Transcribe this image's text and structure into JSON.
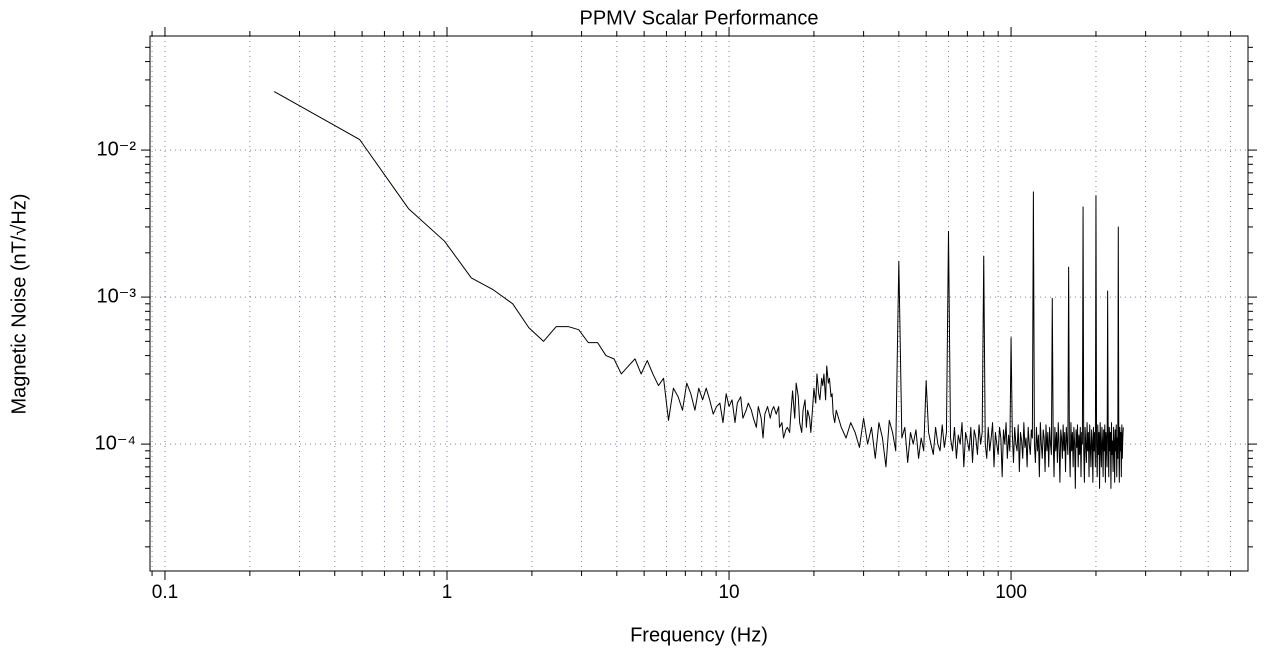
{
  "chart_data": {
    "type": "line",
    "title": "PPMV Scalar Performance",
    "x_label": "Frequency (Hz)",
    "y_label": "Magnetic Noise (nT/√Hz)",
    "log_x": true,
    "log_y": true,
    "grid": true,
    "color": "#000000",
    "xlim": [
      0.0885,
      692
    ],
    "ylim": [
      1.37e-05,
      0.0597
    ],
    "xticks": [
      0.1,
      1,
      10,
      100
    ],
    "xminor": [
      0.09,
      0.2,
      0.3,
      0.4,
      0.5,
      0.6,
      0.7,
      0.8,
      0.9,
      2,
      3,
      4,
      5,
      6,
      7,
      8,
      9,
      20,
      30,
      40,
      50,
      60,
      70,
      80,
      90,
      200,
      300,
      400,
      500,
      600
    ],
    "yticks": [
      {
        "value": 0.01,
        "label": "10⁻²"
      },
      {
        "value": 0.001,
        "label": "10⁻³"
      },
      {
        "value": 0.0001,
        "label": "10⁻⁴"
      }
    ],
    "yminor": [
      2e-05,
      3e-05,
      4e-05,
      5e-05,
      6e-05,
      7e-05,
      8e-05,
      9e-05,
      0.0002,
      0.0003,
      0.0004,
      0.0005,
      0.0006,
      0.0007,
      0.0008,
      0.0009,
      0.002,
      0.003,
      0.004,
      0.005,
      0.006,
      0.007,
      0.008,
      0.009,
      0.02,
      0.03,
      0.04,
      0.05
    ],
    "x": [
      0.244,
      0.49,
      0.73,
      0.98,
      1.22,
      1.46,
      1.71,
      1.95,
      2.2,
      2.44,
      2.69,
      2.93,
      3.17,
      3.42,
      3.66,
      3.91,
      4.15,
      4.4,
      4.64,
      4.88,
      5.13,
      5.37,
      5.62,
      5.86,
      6.1,
      6.35,
      6.6,
      6.84,
      7.08,
      7.32,
      7.57,
      7.81,
      8.06,
      8.3,
      8.54,
      8.79,
      9.03,
      9.28,
      9.52,
      9.77,
      10.0,
      10.25,
      10.5,
      10.7,
      11.0,
      11.2,
      11.5,
      11.7,
      12.0,
      12.2,
      12.5,
      12.7,
      13.0,
      13.2,
      13.4,
      13.7,
      14.0,
      14.2,
      14.4,
      14.7,
      15.0,
      15.1,
      15.4,
      15.6,
      15.9,
      16.1,
      16.4,
      16.6,
      16.8,
      17.1,
      17.3,
      17.6,
      17.8,
      18.1,
      18.3,
      18.6,
      18.8,
      19.0,
      19.3,
      19.5,
      19.8,
      20.0,
      20.3,
      20.5,
      20.8,
      21.0,
      21.3,
      21.5,
      21.7,
      22.0,
      22.2,
      22.5,
      22.7,
      23.0,
      23.2,
      23.4,
      23.7,
      24.0,
      25,
      26,
      27,
      28,
      29,
      30,
      31,
      32,
      33,
      34,
      35,
      36,
      37,
      38,
      39,
      40,
      41,
      42,
      43,
      44,
      45,
      46,
      47,
      48,
      49,
      50,
      51,
      52,
      53,
      54,
      55,
      56,
      57,
      58,
      59,
      60,
      61,
      62,
      63,
      64,
      65,
      66,
      67,
      68,
      69,
      70,
      71,
      72,
      73,
      74,
      75,
      76,
      77,
      78,
      79,
      80,
      81,
      82,
      83,
      84,
      85,
      86,
      87,
      88,
      89,
      90,
      91,
      92,
      93,
      94,
      95,
      96,
      97,
      98,
      99,
      100,
      101,
      102,
      103,
      104,
      105,
      106,
      107,
      108,
      109,
      110,
      111,
      112,
      113,
      114,
      115,
      116,
      117,
      118,
      119,
      120,
      121,
      122,
      123,
      124,
      125,
      126,
      127,
      128,
      129,
      130,
      131,
      132,
      133,
      134,
      135,
      136,
      137,
      138,
      139,
      140,
      141,
      142,
      143,
      144,
      145,
      146,
      147,
      148,
      149,
      150,
      151,
      152,
      153,
      154,
      155,
      156,
      157,
      158,
      159,
      160,
      161,
      162,
      163,
      164,
      165,
      166,
      167,
      168,
      169,
      170,
      171,
      172,
      173,
      174,
      175,
      176,
      177,
      178,
      179,
      180,
      181,
      182,
      183,
      184,
      185,
      186,
      187,
      188,
      189,
      190,
      191,
      192,
      193,
      194,
      195,
      196,
      197,
      198,
      199,
      200,
      201,
      202,
      203,
      204,
      205,
      206,
      207,
      208,
      209,
      210,
      211,
      212,
      213,
      214,
      215,
      216,
      217,
      218,
      219,
      220,
      221,
      222,
      223,
      224,
      225,
      226,
      227,
      228,
      229,
      230,
      231,
      232,
      233,
      234,
      235,
      236,
      237,
      238,
      239,
      240,
      241,
      242,
      243,
      244,
      245,
      246,
      247,
      248,
      249,
      250
    ],
    "values": [
      0.025,
      0.0118,
      0.004,
      0.0024,
      0.00135,
      0.00112,
      0.0009,
      0.00062,
      0.0005,
      0.00063,
      0.00063,
      0.0006,
      0.00049,
      0.00049,
      0.0004,
      0.00038,
      0.0003,
      0.00034,
      0.00038,
      0.0003,
      0.00037,
      0.0003,
      0.00025,
      0.00028,
      0.000145,
      0.00024,
      0.00021,
      0.00017,
      0.00026,
      0.00022,
      0.00017,
      0.00024,
      0.0002,
      0.00024,
      0.0002,
      0.00016,
      0.00018,
      0.00019,
      0.00014,
      0.00022,
      0.00018,
      0.0002,
      0.00014,
      0.00019,
      0.00021,
      0.00015,
      0.00017,
      0.00019,
      0.00017,
      0.00015,
      0.00013,
      0.00018,
      0.00015,
      0.00011,
      0.00016,
      0.00018,
      0.00015,
      0.00017,
      0.00018,
      0.00016,
      0.00018,
      0.00013,
      0.00014,
      0.00011,
      0.000125,
      0.00013,
      0.00012,
      0.00017,
      0.00023,
      0.00015,
      0.00026,
      0.00021,
      0.00014,
      0.00012,
      0.00017,
      0.0002,
      0.00013,
      0.00017,
      0.00015,
      0.00012,
      0.00018,
      0.00024,
      0.00019,
      0.0003,
      0.00022,
      0.0002,
      0.00028,
      0.00025,
      0.0003,
      0.0002,
      0.00034,
      0.00026,
      0.00028,
      0.00021,
      0.00022,
      0.00016,
      0.00014,
      0.00017,
      0.00013,
      0.00011,
      0.00014,
      0.00012,
      9.5e-05,
      0.00015,
      0.0001,
      0.00013,
      8e-05,
      0.00014,
      0.00011,
      7e-05,
      0.000145,
      0.00012,
      9e-05,
      0.00175,
      0.00011,
      0.00013,
      7.5e-05,
      0.00012,
      0.0001,
      0.000125,
      8e-05,
      0.00011,
      9e-05,
      0.00027,
      0.00012,
      0.0001,
      8.5e-05,
      0.00013,
      0.0001,
      9e-05,
      0.000135,
      9.5e-05,
      0.00012,
      0.0028,
      0.00011,
      9e-05,
      0.00013,
      8e-05,
      0.000115,
      0.0001,
      0.00014,
      7e-05,
      0.00012,
      0.000105,
      9e-05,
      0.00013,
      7.5e-05,
      0.000125,
      0.00011,
      8.5e-05,
      0.000135,
      0.0001,
      0.00012,
      0.0019,
      0.0001,
      8e-05,
      0.00013,
      9e-05,
      0.00011,
      0.00014,
      7e-05,
      0.00012,
      0.0001,
      8.5e-05,
      0.00013,
      0.00011,
      6e-05,
      0.000125,
      0.0001,
      0.00014,
      8e-05,
      0.000115,
      9e-05,
      0.00053,
      0.00012,
      7.5e-05,
      0.00013,
      0.0001,
      9e-05,
      0.000135,
      6.5e-05,
      0.00012,
      0.000105,
      8e-05,
      0.00014,
      9.5e-05,
      0.00011,
      7e-05,
      0.00013,
      0.0001,
      8.5e-05,
      0.000125,
      0.00011,
      0.0052,
      0.0001,
      7.5e-05,
      0.00013,
      9e-05,
      0.000115,
      6e-05,
      0.00014,
      0.0001,
      8e-05,
      0.000125,
      0.00011,
      6.5e-05,
      0.000135,
      9e-05,
      0.00012,
      7e-05,
      0.00013,
      0.0001,
      8.5e-05,
      0.00098,
      0.000115,
      6e-05,
      0.00013,
      9e-05,
      0.00012,
      7.5e-05,
      0.00014,
      0.0001,
      5.5e-05,
      0.000125,
      0.00011,
      8e-05,
      0.000135,
      9e-05,
      0.00012,
      6.5e-05,
      0.00013,
      0.000105,
      8.5e-05,
      0.0016,
      0.0001,
      6e-05,
      0.00014,
      9e-05,
      0.00012,
      7e-05,
      0.00013,
      0.0001,
      5e-05,
      0.000125,
      9.5e-05,
      0.000135,
      7e-05,
      0.000115,
      8.5e-05,
      0.00013,
      6e-05,
      0.00012,
      0.0001,
      0.0041,
      9e-05,
      5.5e-05,
      0.00013,
      0.0001,
      7.5e-05,
      0.00014,
      9e-05,
      0.00012,
      6e-05,
      0.000135,
      9.5e-05,
      7e-05,
      0.000125,
      0.000105,
      5.5e-05,
      0.00013,
      9e-05,
      0.00012,
      7e-05,
      0.0049,
      0.0001,
      6e-05,
      0.000135,
      8.5e-05,
      0.00012,
      5e-05,
      0.00014,
      9.5e-05,
      7e-05,
      0.00013,
      0.000105,
      6e-05,
      0.000125,
      9e-05,
      0.000135,
      5.5e-05,
      0.00012,
      0.0001,
      7e-05,
      0.0011,
      0.00011,
      6e-05,
      0.00013,
      9e-05,
      0.00012,
      5e-05,
      0.00014,
      8.5e-05,
      0.000105,
      6.5e-05,
      0.00013,
      0.0001,
      5.5e-05,
      0.000125,
      9e-05,
      0.000135,
      6e-05,
      0.00011,
      8e-05,
      0.003,
      0.0001,
      5.5e-05,
      0.00013,
      9e-05,
      0.00012,
      6e-05,
      0.000135,
      8e-05,
      0.00011,
      0.00013
    ]
  }
}
